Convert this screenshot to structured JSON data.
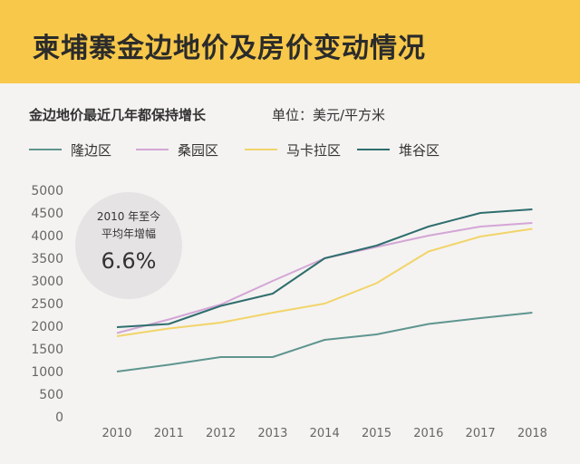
{
  "header": {
    "title": "柬埔寨金边地价及房价变动情况"
  },
  "chart_data": {
    "type": "line",
    "title": "金边地价最近几年都保持增长",
    "unit_label": "单位：美元/平方米",
    "categories": [
      "2010",
      "2011",
      "2012",
      "2013",
      "2014",
      "2015",
      "2016",
      "2017",
      "2018"
    ],
    "ylim": [
      0,
      5000
    ],
    "yticks": [
      0,
      500,
      1000,
      1500,
      2000,
      2500,
      3000,
      3500,
      4000,
      4500,
      5000
    ],
    "grid": false,
    "legend_position": "top",
    "series": [
      {
        "name": "隆边区",
        "color": "#5f9590",
        "values": [
          1000,
          1150,
          1320,
          1320,
          1700,
          1820,
          2050,
          2180,
          2300
        ]
      },
      {
        "name": "桑园区",
        "color": "#d4a6d6",
        "values": [
          1850,
          2150,
          2480,
          3000,
          3500,
          3750,
          4000,
          4200,
          4280
        ]
      },
      {
        "name": "马卡拉区",
        "color": "#f2d46a",
        "values": [
          1780,
          1950,
          2080,
          2300,
          2500,
          2950,
          3650,
          3980,
          4150
        ]
      },
      {
        "name": "堆谷区",
        "color": "#2f6e6e",
        "values": [
          1980,
          2050,
          2450,
          2720,
          3500,
          3780,
          4200,
          4500,
          4580
        ]
      }
    ],
    "annotation": {
      "line1": "2010 年至今",
      "line2": "平均年增幅",
      "value": "6.6%"
    }
  }
}
